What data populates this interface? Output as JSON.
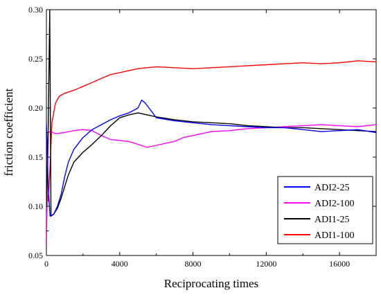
{
  "chart_data": {
    "type": "line",
    "title": "",
    "xlabel": "Reciprocating times",
    "ylabel": "friction coefficient",
    "xlim": [
      0,
      18000
    ],
    "ylim": [
      0.05,
      0.3
    ],
    "x_ticks": [
      0,
      4000,
      8000,
      12000,
      16000
    ],
    "x_tick_labels": [
      "0",
      "4000",
      "8000",
      "12000",
      "16000"
    ],
    "y_ticks": [
      0.05,
      0.1,
      0.15,
      0.2,
      0.25,
      0.3
    ],
    "y_tick_labels": [
      "0.05",
      "0.10",
      "0.15",
      "0.20",
      "0.25",
      "0.30"
    ],
    "grid": false,
    "legend_position": "bottom-right",
    "series": [
      {
        "name": "ADI2-25",
        "color": "#0000ff",
        "x": [
          0,
          100,
          200,
          400,
          600,
          800,
          1000,
          1200,
          1500,
          2000,
          2500,
          3000,
          3500,
          4000,
          4500,
          5000,
          5200,
          5400,
          5600,
          5800,
          6000,
          7000,
          8000,
          9000,
          10000,
          11000,
          12000,
          13000,
          14000,
          15000,
          16000,
          17000,
          18000
        ],
        "y": [
          0.185,
          0.12,
          0.09,
          0.092,
          0.1,
          0.112,
          0.13,
          0.145,
          0.158,
          0.17,
          0.178,
          0.183,
          0.188,
          0.192,
          0.195,
          0.2,
          0.208,
          0.205,
          0.2,
          0.195,
          0.19,
          0.187,
          0.185,
          0.183,
          0.182,
          0.181,
          0.18,
          0.18,
          0.178,
          0.176,
          0.177,
          0.178,
          0.175
        ]
      },
      {
        "name": "ADI2-100",
        "color": "#ff00ff",
        "x": [
          0,
          100,
          200,
          500,
          1000,
          1500,
          2000,
          2500,
          3000,
          3500,
          4000,
          4500,
          5000,
          5500,
          6000,
          6500,
          7000,
          7500,
          8000,
          8500,
          9000,
          10000,
          11000,
          12000,
          13000,
          14000,
          15000,
          16000,
          17000,
          18000
        ],
        "y": [
          0.06,
          0.175,
          0.176,
          0.174,
          0.175,
          0.177,
          0.178,
          0.177,
          0.172,
          0.168,
          0.167,
          0.166,
          0.163,
          0.16,
          0.162,
          0.164,
          0.166,
          0.17,
          0.172,
          0.174,
          0.176,
          0.177,
          0.179,
          0.18,
          0.181,
          0.182,
          0.183,
          0.182,
          0.181,
          0.183
        ]
      },
      {
        "name": "ADI1-25",
        "color": "#000000",
        "x": [
          0,
          100,
          180,
          250,
          400,
          600,
          800,
          1000,
          1200,
          1500,
          2000,
          2500,
          3000,
          3500,
          4000,
          4500,
          5000,
          5500,
          6000,
          7000,
          8000,
          9000,
          10000,
          11000,
          12000,
          13000,
          14000,
          15000,
          16000,
          17000,
          18000
        ],
        "y": [
          0.1,
          0.18,
          0.3,
          0.09,
          0.092,
          0.098,
          0.108,
          0.12,
          0.132,
          0.145,
          0.155,
          0.163,
          0.172,
          0.182,
          0.19,
          0.193,
          0.195,
          0.193,
          0.191,
          0.188,
          0.186,
          0.185,
          0.184,
          0.182,
          0.181,
          0.18,
          0.18,
          0.179,
          0.178,
          0.177,
          0.176
        ]
      },
      {
        "name": "ADI1-100",
        "color": "#ff0000",
        "x": [
          0,
          100,
          200,
          300,
          500,
          700,
          1000,
          1500,
          2000,
          2500,
          3000,
          3500,
          4000,
          5000,
          6000,
          7000,
          8000,
          9000,
          10000,
          11000,
          12000,
          13000,
          14000,
          15000,
          16000,
          17000,
          18000
        ],
        "y": [
          0.12,
          0.105,
          0.14,
          0.185,
          0.205,
          0.212,
          0.215,
          0.218,
          0.222,
          0.226,
          0.23,
          0.234,
          0.236,
          0.24,
          0.242,
          0.241,
          0.24,
          0.241,
          0.242,
          0.243,
          0.244,
          0.245,
          0.246,
          0.245,
          0.246,
          0.248,
          0.247
        ]
      }
    ]
  }
}
